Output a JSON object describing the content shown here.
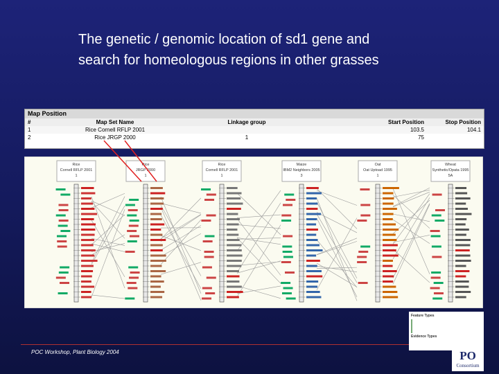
{
  "header": {
    "title_line1": "The genetic / genomic location of sd1 gene and",
    "title_line2": "search for homeologous regions in other grasses"
  },
  "table": {
    "caption": "Map Position",
    "columns": [
      "#",
      "Map Set Name",
      "Linkage group",
      "Start Position",
      "Stop Position"
    ],
    "rows": [
      {
        "num": "1",
        "map_set": "Rice Cornell RFLP 2001",
        "start": "103.5",
        "stop": "104.1"
      },
      {
        "num": "2",
        "map_set": "Rice JRGP 2000",
        "linkage_group": "1",
        "start": "75"
      }
    ]
  },
  "maps": [
    {
      "species": "Rice",
      "map_set": "Cornell RFLP 2001",
      "group": "1"
    },
    {
      "species": "Rice",
      "map_set": "JRGP 2000",
      "group": "1"
    },
    {
      "species": "Rice",
      "map_set": "Cornell RFLP 2001",
      "group": "1"
    },
    {
      "species": "Maize",
      "map_set": "IBM2 Neighbors 2005",
      "group": "3"
    },
    {
      "species": "Oat",
      "map_set": "Oat Uptoad 1995",
      "group": "1"
    },
    {
      "species": "Wheat",
      "map_set": "Synthetic/Opata 1995",
      "group": "5A"
    }
  ],
  "legend": {
    "feature_title": "Feature Types",
    "evidence_title": "Evidence Types"
  },
  "footer": {
    "text": "POC Workshop, Plant Biology 2004",
    "logo": "PO",
    "logo_sub": "Consortium"
  }
}
